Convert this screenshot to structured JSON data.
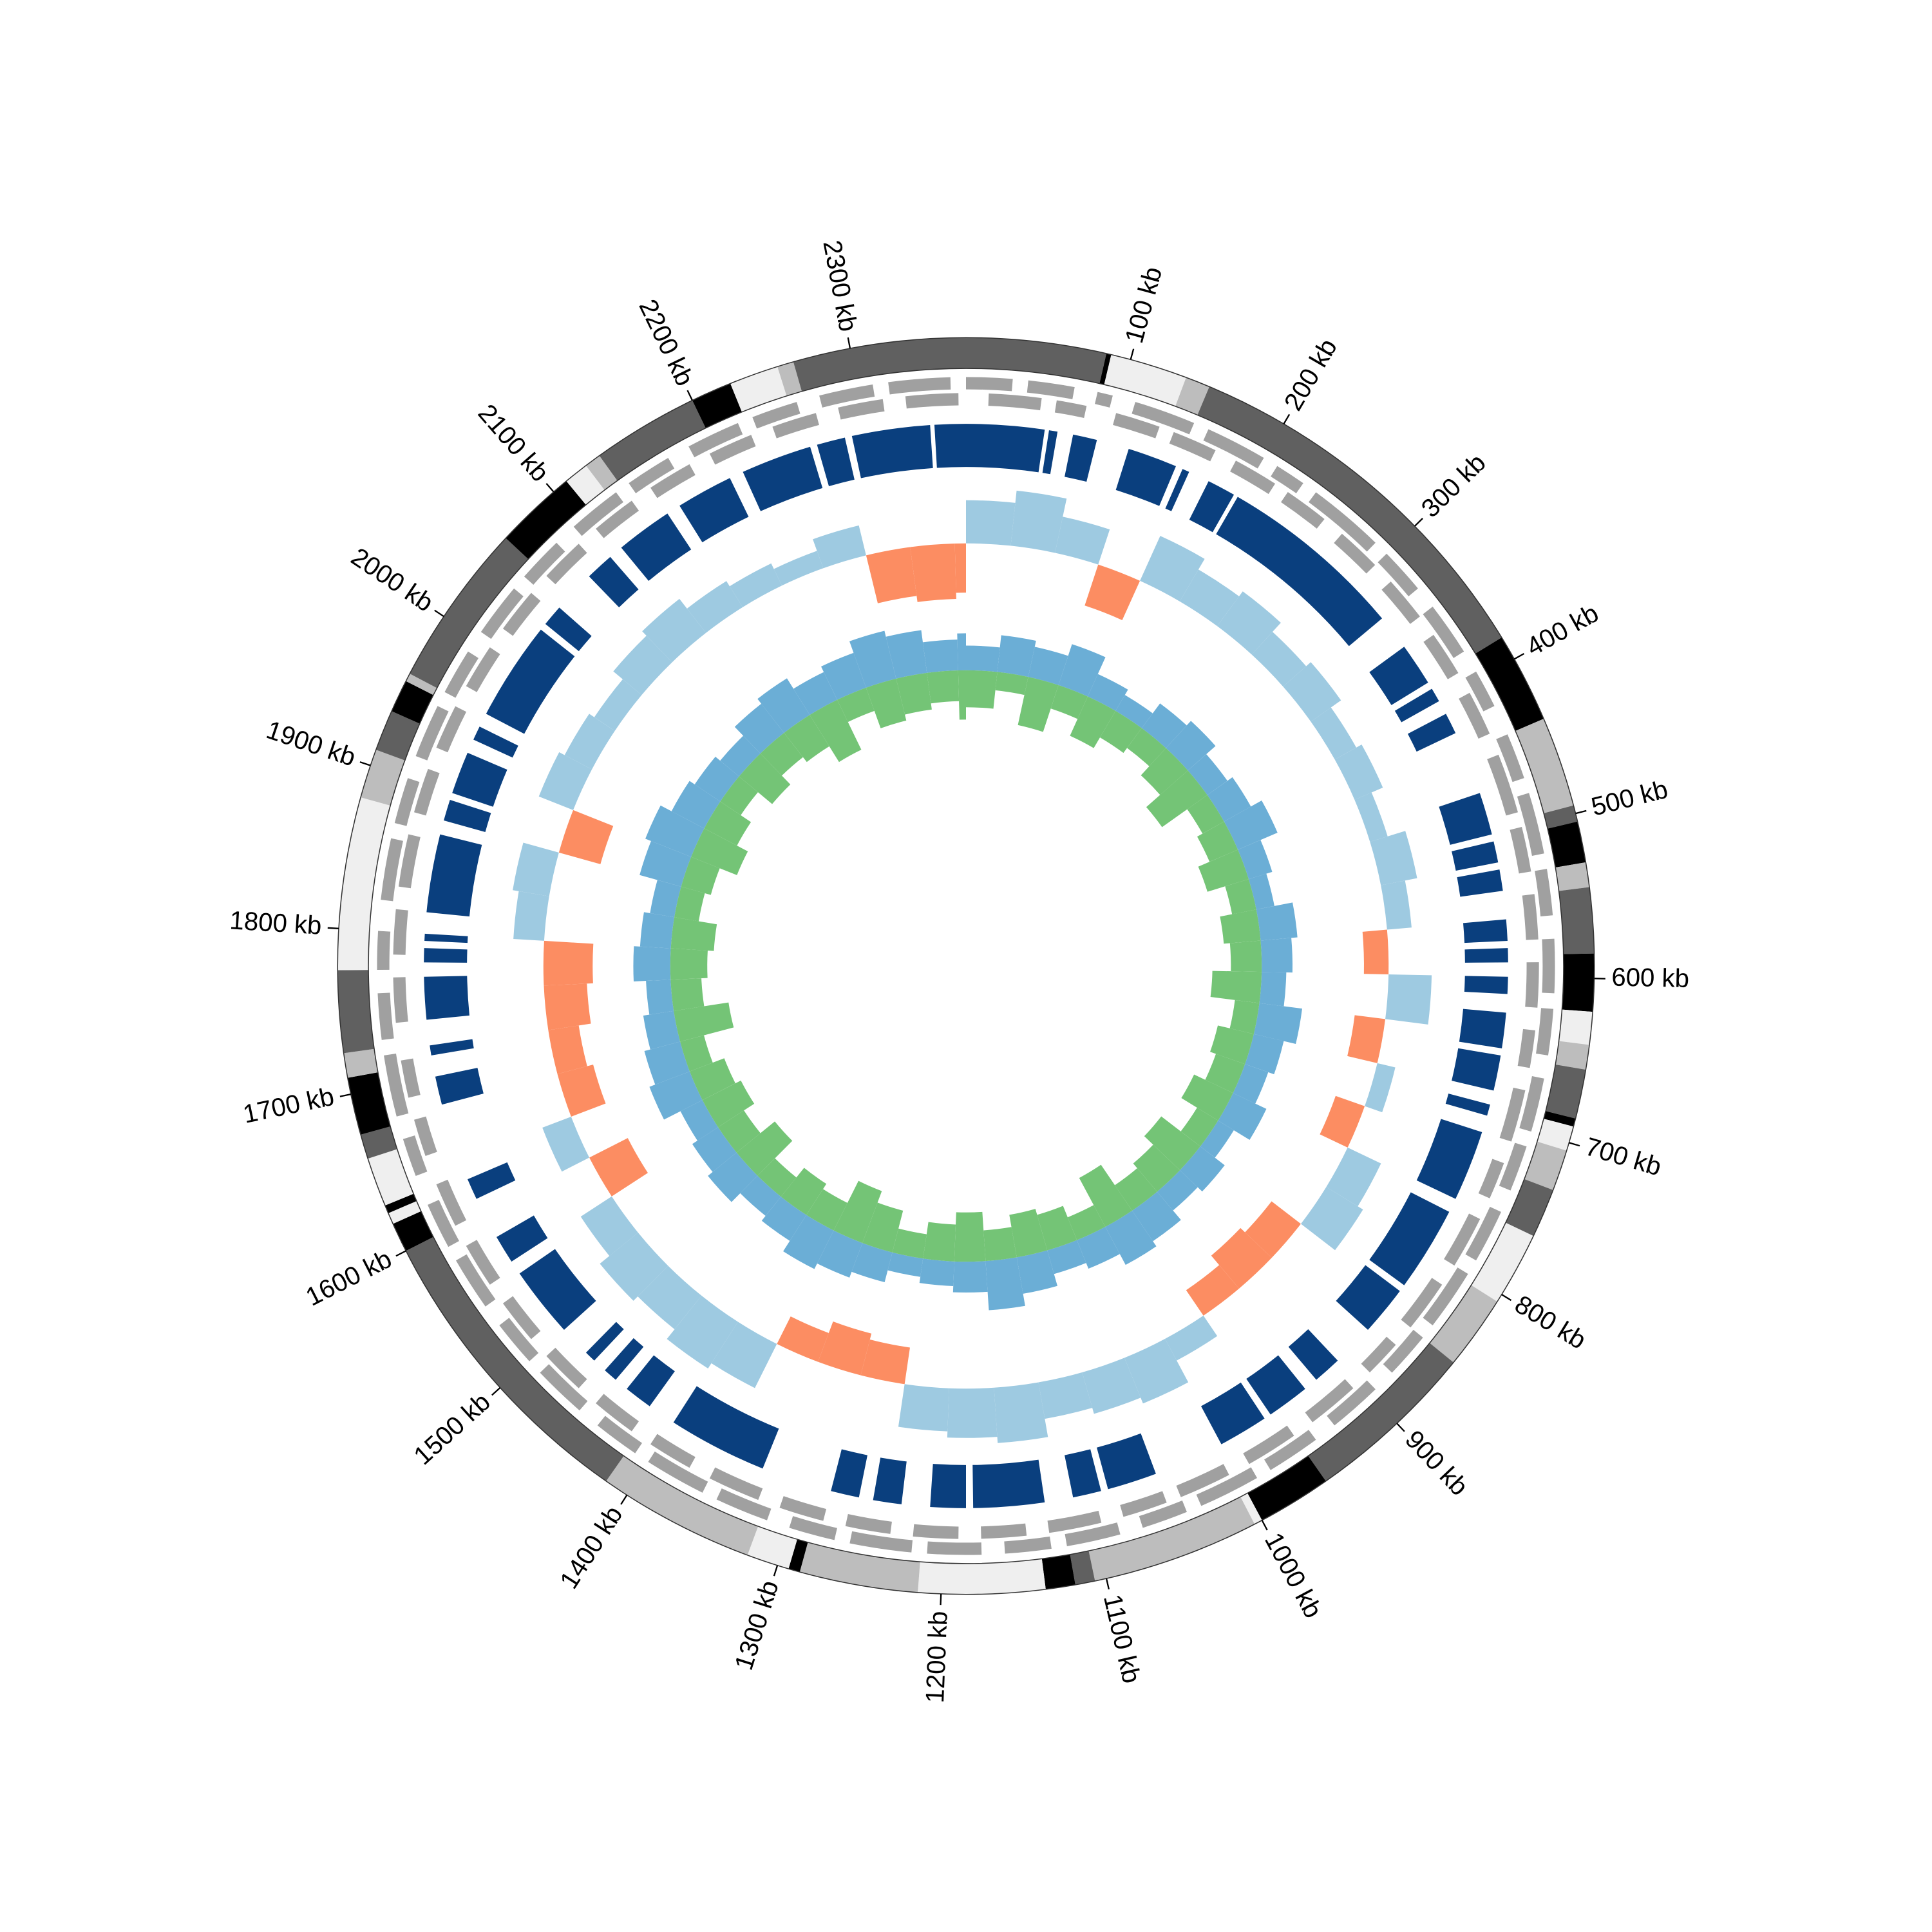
{
  "chart_data": {
    "type": "circos",
    "xlim": [
      0,
      2370
    ],
    "xticks": [
      {
        "value": 100,
        "label": "100 kb"
      },
      {
        "value": 200,
        "label": "200 kb"
      },
      {
        "value": 300,
        "label": "300 kb"
      },
      {
        "value": 400,
        "label": "400 kb"
      },
      {
        "value": 500,
        "label": "500 kb"
      },
      {
        "value": 600,
        "label": "600 kb"
      },
      {
        "value": 700,
        "label": "700 kb"
      },
      {
        "value": 800,
        "label": "800 kb"
      },
      {
        "value": 900,
        "label": "900 kb"
      },
      {
        "value": 1000,
        "label": "1000 kb"
      },
      {
        "value": 1100,
        "label": "1100 kb"
      },
      {
        "value": 1200,
        "label": "1200 kb"
      },
      {
        "value": 1300,
        "label": "1300 kb"
      },
      {
        "value": 1400,
        "label": "1400 kb"
      },
      {
        "value": 1500,
        "label": "1500 kb"
      },
      {
        "value": 1600,
        "label": "1600 kb"
      },
      {
        "value": 1700,
        "label": "1700 kb"
      },
      {
        "value": 1800,
        "label": "1800 kb"
      },
      {
        "value": 1900,
        "label": "1900 kb"
      },
      {
        "value": 2000,
        "label": "2000 kb"
      },
      {
        "value": 2100,
        "label": "2100 kb"
      },
      {
        "value": 2200,
        "label": "2200 kb"
      },
      {
        "value": 2300,
        "label": "2300 kb"
      }
    ],
    "bands": {
      "starts": [
        0,
        85,
        88,
        135,
        150,
        385,
        440,
        495,
        505,
        530,
        545,
        585,
        620,
        640,
        655,
        685,
        690,
        705,
        730,
        760,
        805,
        850,
        955,
        1000,
        1005,
        1107,
        1119,
        1137,
        1214,
        1286,
        1293,
        1319,
        1415,
        1600,
        1618,
        1625,
        1630,
        1660,
        1675,
        1710,
        1725,
        1775,
        1880,
        1910,
        1935,
        1955,
        1960,
        2060,
        2110,
        2125,
        2135,
        2200,
        2225,
        2255,
        2265
      ],
      "ends": [
        85,
        88,
        135,
        150,
        385,
        440,
        495,
        505,
        530,
        545,
        585,
        620,
        640,
        655,
        685,
        690,
        705,
        730,
        760,
        805,
        850,
        955,
        1000,
        1005,
        1107,
        1119,
        1137,
        1214,
        1286,
        1293,
        1319,
        1415,
        1600,
        1618,
        1625,
        1630,
        1660,
        1675,
        1710,
        1725,
        1775,
        1880,
        1910,
        1935,
        1955,
        1960,
        2060,
        2110,
        2125,
        2135,
        2200,
        2225,
        2255,
        2265,
        2370
      ],
      "colors": [
        "#606060",
        "#000000",
        "#efefef",
        "#bdbdbd",
        "#606060",
        "#000000",
        "#bdbdbd",
        "#606060",
        "#000000",
        "#bdbdbd",
        "#606060",
        "#000000",
        "#efefef",
        "#bdbdbd",
        "#606060",
        "#000000",
        "#efefef",
        "#bdbdbd",
        "#606060",
        "#efefef",
        "#bdbdbd",
        "#606060",
        "#000000",
        "#efefef",
        "#bdbdbd",
        "#606060",
        "#000000",
        "#efefef",
        "#bdbdbd",
        "#000000",
        "#efefef",
        "#bdbdbd",
        "#606060",
        "#000000",
        "#efefef",
        "#000000",
        "#efefef",
        "#606060",
        "#000000",
        "#bdbdbd",
        "#606060",
        "#efefef",
        "#bdbdbd",
        "#606060",
        "#000000",
        "#bdbdbd",
        "#606060",
        "#000000",
        "#efefef",
        "#bdbdbd",
        "#606060",
        "#000000",
        "#efefef",
        "#bdbdbd",
        "#606060"
      ]
    },
    "genes_forward": {
      "color": "#a0a0a0",
      "starts": [
        0,
        40,
        85,
        110,
        160,
        210,
        240,
        300,
        345,
        395,
        440,
        480,
        530,
        575,
        620,
        665,
        710,
        755,
        800,
        850,
        895,
        945,
        990,
        1040,
        1085,
        1130,
        1175,
        1220,
        1270,
        1315,
        1360,
        1410,
        1455,
        1500,
        1545,
        1590,
        1640,
        1680,
        1730,
        1775,
        1820,
        1870,
        1915,
        1960,
        2005,
        2050,
        2095,
        2140,
        2185,
        2230,
        2275,
        2320
      ],
      "ends": [
        30,
        70,
        95,
        150,
        200,
        230,
        290,
        330,
        380,
        420,
        470,
        520,
        560,
        610,
        650,
        700,
        740,
        790,
        840,
        880,
        930,
        980,
        1030,
        1070,
        1120,
        1160,
        1210,
        1260,
        1300,
        1350,
        1400,
        1440,
        1490,
        1530,
        1580,
        1620,
        1665,
        1720,
        1760,
        1800,
        1860,
        1900,
        1950,
        1990,
        2040,
        2080,
        2130,
        2170,
        2220,
        2260,
        2310,
        2360
      ]
    },
    "genes_reverse": {
      "color": "#a0a0a0",
      "starts": [
        15,
        60,
        100,
        140,
        185,
        225,
        270,
        315,
        360,
        405,
        450,
        500,
        545,
        590,
        635,
        675,
        725,
        765,
        815,
        865,
        905,
        955,
        1005,
        1050,
        1095,
        1145,
        1190,
        1235,
        1280,
        1325,
        1375,
        1420,
        1465,
        1510,
        1555,
        1600,
        1650,
        1690,
        1740,
        1785,
        1830,
        1880,
        1925,
        1970,
        2015,
        2060,
        2105,
        2150,
        2195,
        2240,
        2285,
        2330
      ],
      "ends": [
        50,
        80,
        130,
        170,
        215,
        255,
        300,
        345,
        390,
        435,
        490,
        530,
        575,
        620,
        660,
        710,
        750,
        800,
        850,
        890,
        940,
        990,
        1040,
        1080,
        1130,
        1175,
        1220,
        1265,
        1310,
        1360,
        1405,
        1450,
        1495,
        1540,
        1585,
        1630,
        1675,
        1715,
        1770,
        1815,
        1865,
        1910,
        1955,
        2000,
        2045,
        2090,
        2135,
        2180,
        2225,
        2270,
        2315,
        2365
      ]
    },
    "blocks": {
      "color": "#0a3f7e",
      "starts": [
        0,
        58,
        75,
        115,
        155,
        175,
        198,
        355,
        390,
        410,
        470,
        505,
        525,
        560,
        580,
        600,
        625,
        655,
        690,
        710,
        770,
        835,
        900,
        930,
        965,
        1050,
        1090,
        1130,
        1185,
        1230,
        1260,
        1330,
        1420,
        1450,
        1470,
        1500,
        1560,
        1610,
        1680,
        1715,
        1740,
        1780,
        1795,
        1815,
        1880,
        1900,
        1940,
        1960,
        2035,
        2080,
        2110,
        2160,
        2210,
        2265,
        2290,
        2348
      ],
      "ends": [
        55,
        64,
        92,
        150,
        160,
        195,
        330,
        385,
        400,
        425,
        500,
        520,
        540,
        575,
        590,
        612,
        650,
        680,
        698,
        760,
        830,
        870,
        920,
        960,
        1000,
        1085,
        1110,
        1180,
        1210,
        1250,
        1280,
        1400,
        1440,
        1460,
        1478,
        1550,
        1580,
        1625,
        1700,
        1722,
        1770,
        1790,
        1800,
        1870,
        1895,
        1930,
        1950,
        2030,
        2050,
        2100,
        2150,
        2200,
        2260,
        2285,
        2345,
        2370
      ]
    },
    "x": [
      0,
      40,
      80,
      120,
      160,
      200,
      240,
      280,
      320,
      360,
      400,
      440,
      480,
      520,
      560,
      600,
      640,
      680,
      720,
      760,
      800,
      840,
      880,
      920,
      960,
      1000,
      1040,
      1080,
      1120,
      1160,
      1200,
      1240,
      1280,
      1320,
      1360,
      1400,
      1440,
      1480,
      1520,
      1560,
      1600,
      1640,
      1680,
      1720,
      1760,
      1800,
      1840,
      1880,
      1920,
      1960,
      2000,
      2040,
      2080,
      2120,
      2160,
      2200,
      2240,
      2280,
      2320,
      2360
    ],
    "gc": {
      "ylim": [
        -60,
        60
      ],
      "positive_color": "#9ecae1",
      "negative_color": "#fc8d62",
      "values": [
        35,
        45,
        30,
        -35,
        40,
        30,
        35,
        25,
        30,
        20,
        25,
        15,
        30,
        20,
        -20,
        35,
        -25,
        15,
        -25,
        30,
        35,
        -30,
        -35,
        -25,
        20,
        40,
        35,
        30,
        45,
        40,
        35,
        -30,
        -35,
        -25,
        40,
        45,
        35,
        40,
        30,
        -35,
        25,
        -30,
        -25,
        -35,
        -40,
        25,
        30,
        -35,
        30,
        25,
        20,
        30,
        35,
        25,
        20,
        15,
        25,
        -40,
        -45,
        -40
      ]
    },
    "skew": {
      "ylim": [
        -60,
        60
      ],
      "series": [
        {
          "color": "#6baed6",
          "values": [
            20,
            30,
            25,
            35,
            20,
            15,
            25,
            30,
            20,
            25,
            35,
            20,
            15,
            30,
            25,
            20,
            35,
            25,
            20,
            30,
            15,
            25,
            20,
            30,
            35,
            25,
            20,
            30,
            40,
            25,
            20,
            15,
            25,
            30,
            35,
            25,
            20,
            30,
            25,
            20,
            35,
            30,
            25,
            20,
            30,
            25,
            20,
            35,
            40,
            30,
            25,
            20,
            30,
            35,
            25,
            30,
            40,
            35,
            25,
            30
          ]
        },
        {
          "color": "#74c476",
          "values": [
            -30,
            -15,
            -40,
            -20,
            -35,
            -25,
            -20,
            -30,
            -45,
            -20,
            -25,
            -35,
            -20,
            -30,
            -25,
            -40,
            -20,
            -30,
            -25,
            -35,
            -20,
            -40,
            -30,
            -25,
            -45,
            -20,
            -30,
            -35,
            -25,
            -40,
            -30,
            -20,
            -35,
            -45,
            -25,
            -30,
            -20,
            -40,
            -25,
            -35,
            -30,
            -20,
            -45,
            -25,
            -30,
            -35,
            -20,
            -25,
            -40,
            -30,
            -20,
            -35,
            -25,
            -30,
            -45,
            -20,
            -35,
            -30,
            -25,
            -40
          ]
        }
      ]
    }
  }
}
